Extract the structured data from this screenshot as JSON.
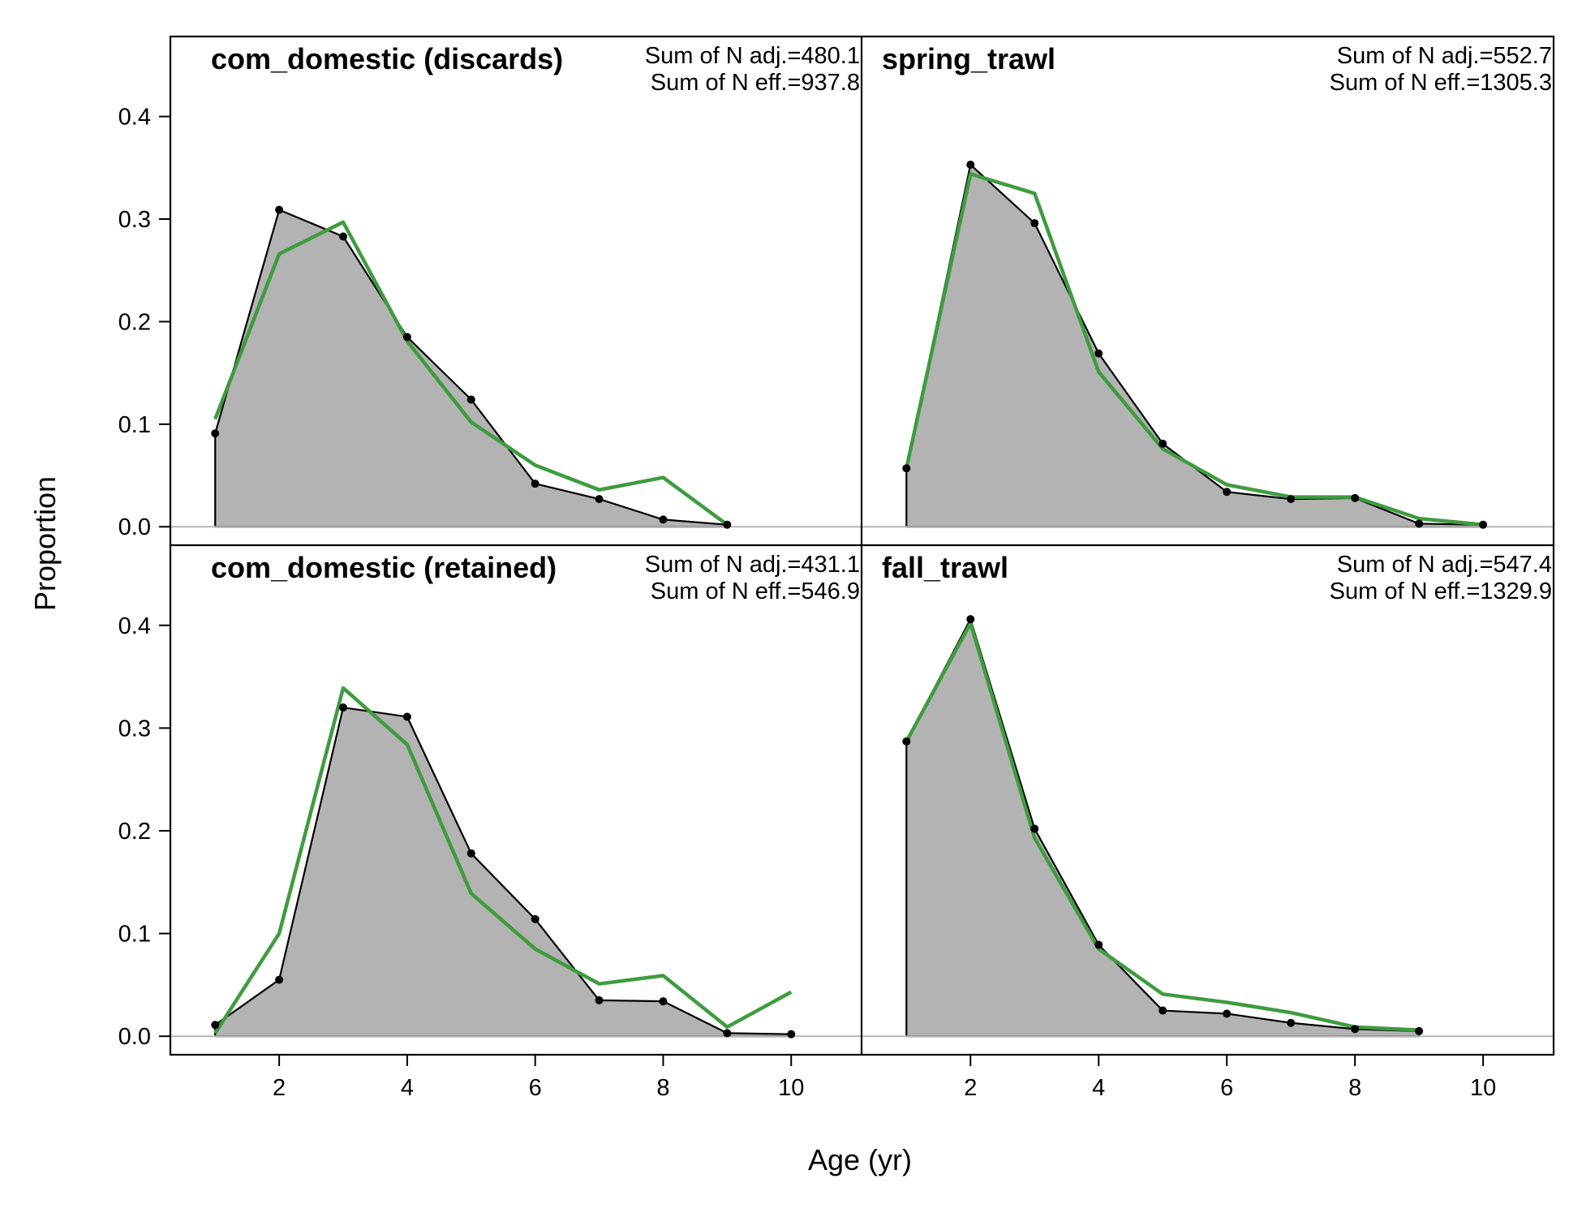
{
  "chart_data": {
    "type": "area",
    "xlabel": "Age (yr)",
    "ylabel": "Proportion",
    "xlim": [
      0.3,
      11.1
    ],
    "ylim": [
      -0.018,
      0.478
    ],
    "x_ticks": [
      2,
      4,
      6,
      8,
      10
    ],
    "y_ticks": [
      0.0,
      0.1,
      0.2,
      0.3,
      0.4
    ],
    "x_tick_labels": [
      "2",
      "4",
      "6",
      "8",
      "10"
    ],
    "y_tick_labels": [
      "0.0",
      "0.1",
      "0.2",
      "0.3",
      "0.4"
    ],
    "colors": {
      "observed_fill": "#b3b3b3",
      "observed_line": "#000000",
      "expected_line": "#3f9b3f",
      "zero_line": "#b5b5b5"
    },
    "panels": [
      {
        "title": "com_domestic (discards)",
        "position": "top-left",
        "stat_adj": "Sum of N adj.=480.1",
        "stat_eff": "Sum of N eff.=937.8",
        "observed": {
          "x": [
            1,
            2,
            3,
            4,
            5,
            6,
            7,
            8,
            9
          ],
          "y": [
            0.091,
            0.309,
            0.283,
            0.185,
            0.124,
            0.042,
            0.027,
            0.007,
            0.002
          ]
        },
        "expected": {
          "x": [
            1,
            2,
            3,
            4,
            5,
            6,
            7,
            8,
            9
          ],
          "y": [
            0.105,
            0.266,
            0.297,
            0.181,
            0.102,
            0.06,
            0.036,
            0.048,
            0.002
          ]
        }
      },
      {
        "title": "spring_trawl",
        "position": "top-right",
        "stat_adj": "Sum of N adj.=552.7",
        "stat_eff": "Sum of N eff.=1305.3",
        "observed": {
          "x": [
            1,
            2,
            3,
            4,
            5,
            6,
            7,
            8,
            9,
            10
          ],
          "y": [
            0.057,
            0.353,
            0.296,
            0.169,
            0.081,
            0.034,
            0.027,
            0.028,
            0.003,
            0.002
          ]
        },
        "expected": {
          "x": [
            1,
            2,
            3,
            4,
            5,
            6,
            7,
            8,
            9,
            10
          ],
          "y": [
            0.057,
            0.344,
            0.325,
            0.151,
            0.076,
            0.041,
            0.029,
            0.029,
            0.008,
            0.002
          ]
        }
      },
      {
        "title": "com_domestic (retained)",
        "position": "bottom-left",
        "stat_adj": "Sum of N adj.=431.1",
        "stat_eff": "Sum of N eff.=546.9",
        "observed": {
          "x": [
            1,
            2,
            3,
            4,
            5,
            6,
            7,
            8,
            9,
            10
          ],
          "y": [
            0.011,
            0.055,
            0.32,
            0.311,
            0.178,
            0.114,
            0.035,
            0.034,
            0.003,
            0.002
          ]
        },
        "expected": {
          "x": [
            1,
            2,
            3,
            4,
            5,
            6,
            7,
            8,
            9,
            10
          ],
          "y": [
            0.003,
            0.1,
            0.339,
            0.284,
            0.139,
            0.085,
            0.051,
            0.059,
            0.009,
            0.043
          ]
        }
      },
      {
        "title": "fall_trawl",
        "position": "bottom-right",
        "stat_adj": "Sum of N adj.=547.4",
        "stat_eff": "Sum of N eff.=1329.9",
        "observed": {
          "x": [
            1,
            2,
            3,
            4,
            5,
            6,
            7,
            8,
            9
          ],
          "y": [
            0.287,
            0.406,
            0.202,
            0.089,
            0.025,
            0.022,
            0.013,
            0.007,
            0.005
          ]
        },
        "expected": {
          "x": [
            1,
            2,
            3,
            4,
            5,
            6,
            7,
            8,
            9
          ],
          "y": [
            0.287,
            0.402,
            0.193,
            0.085,
            0.041,
            0.033,
            0.023,
            0.009,
            0.006
          ]
        }
      }
    ]
  }
}
